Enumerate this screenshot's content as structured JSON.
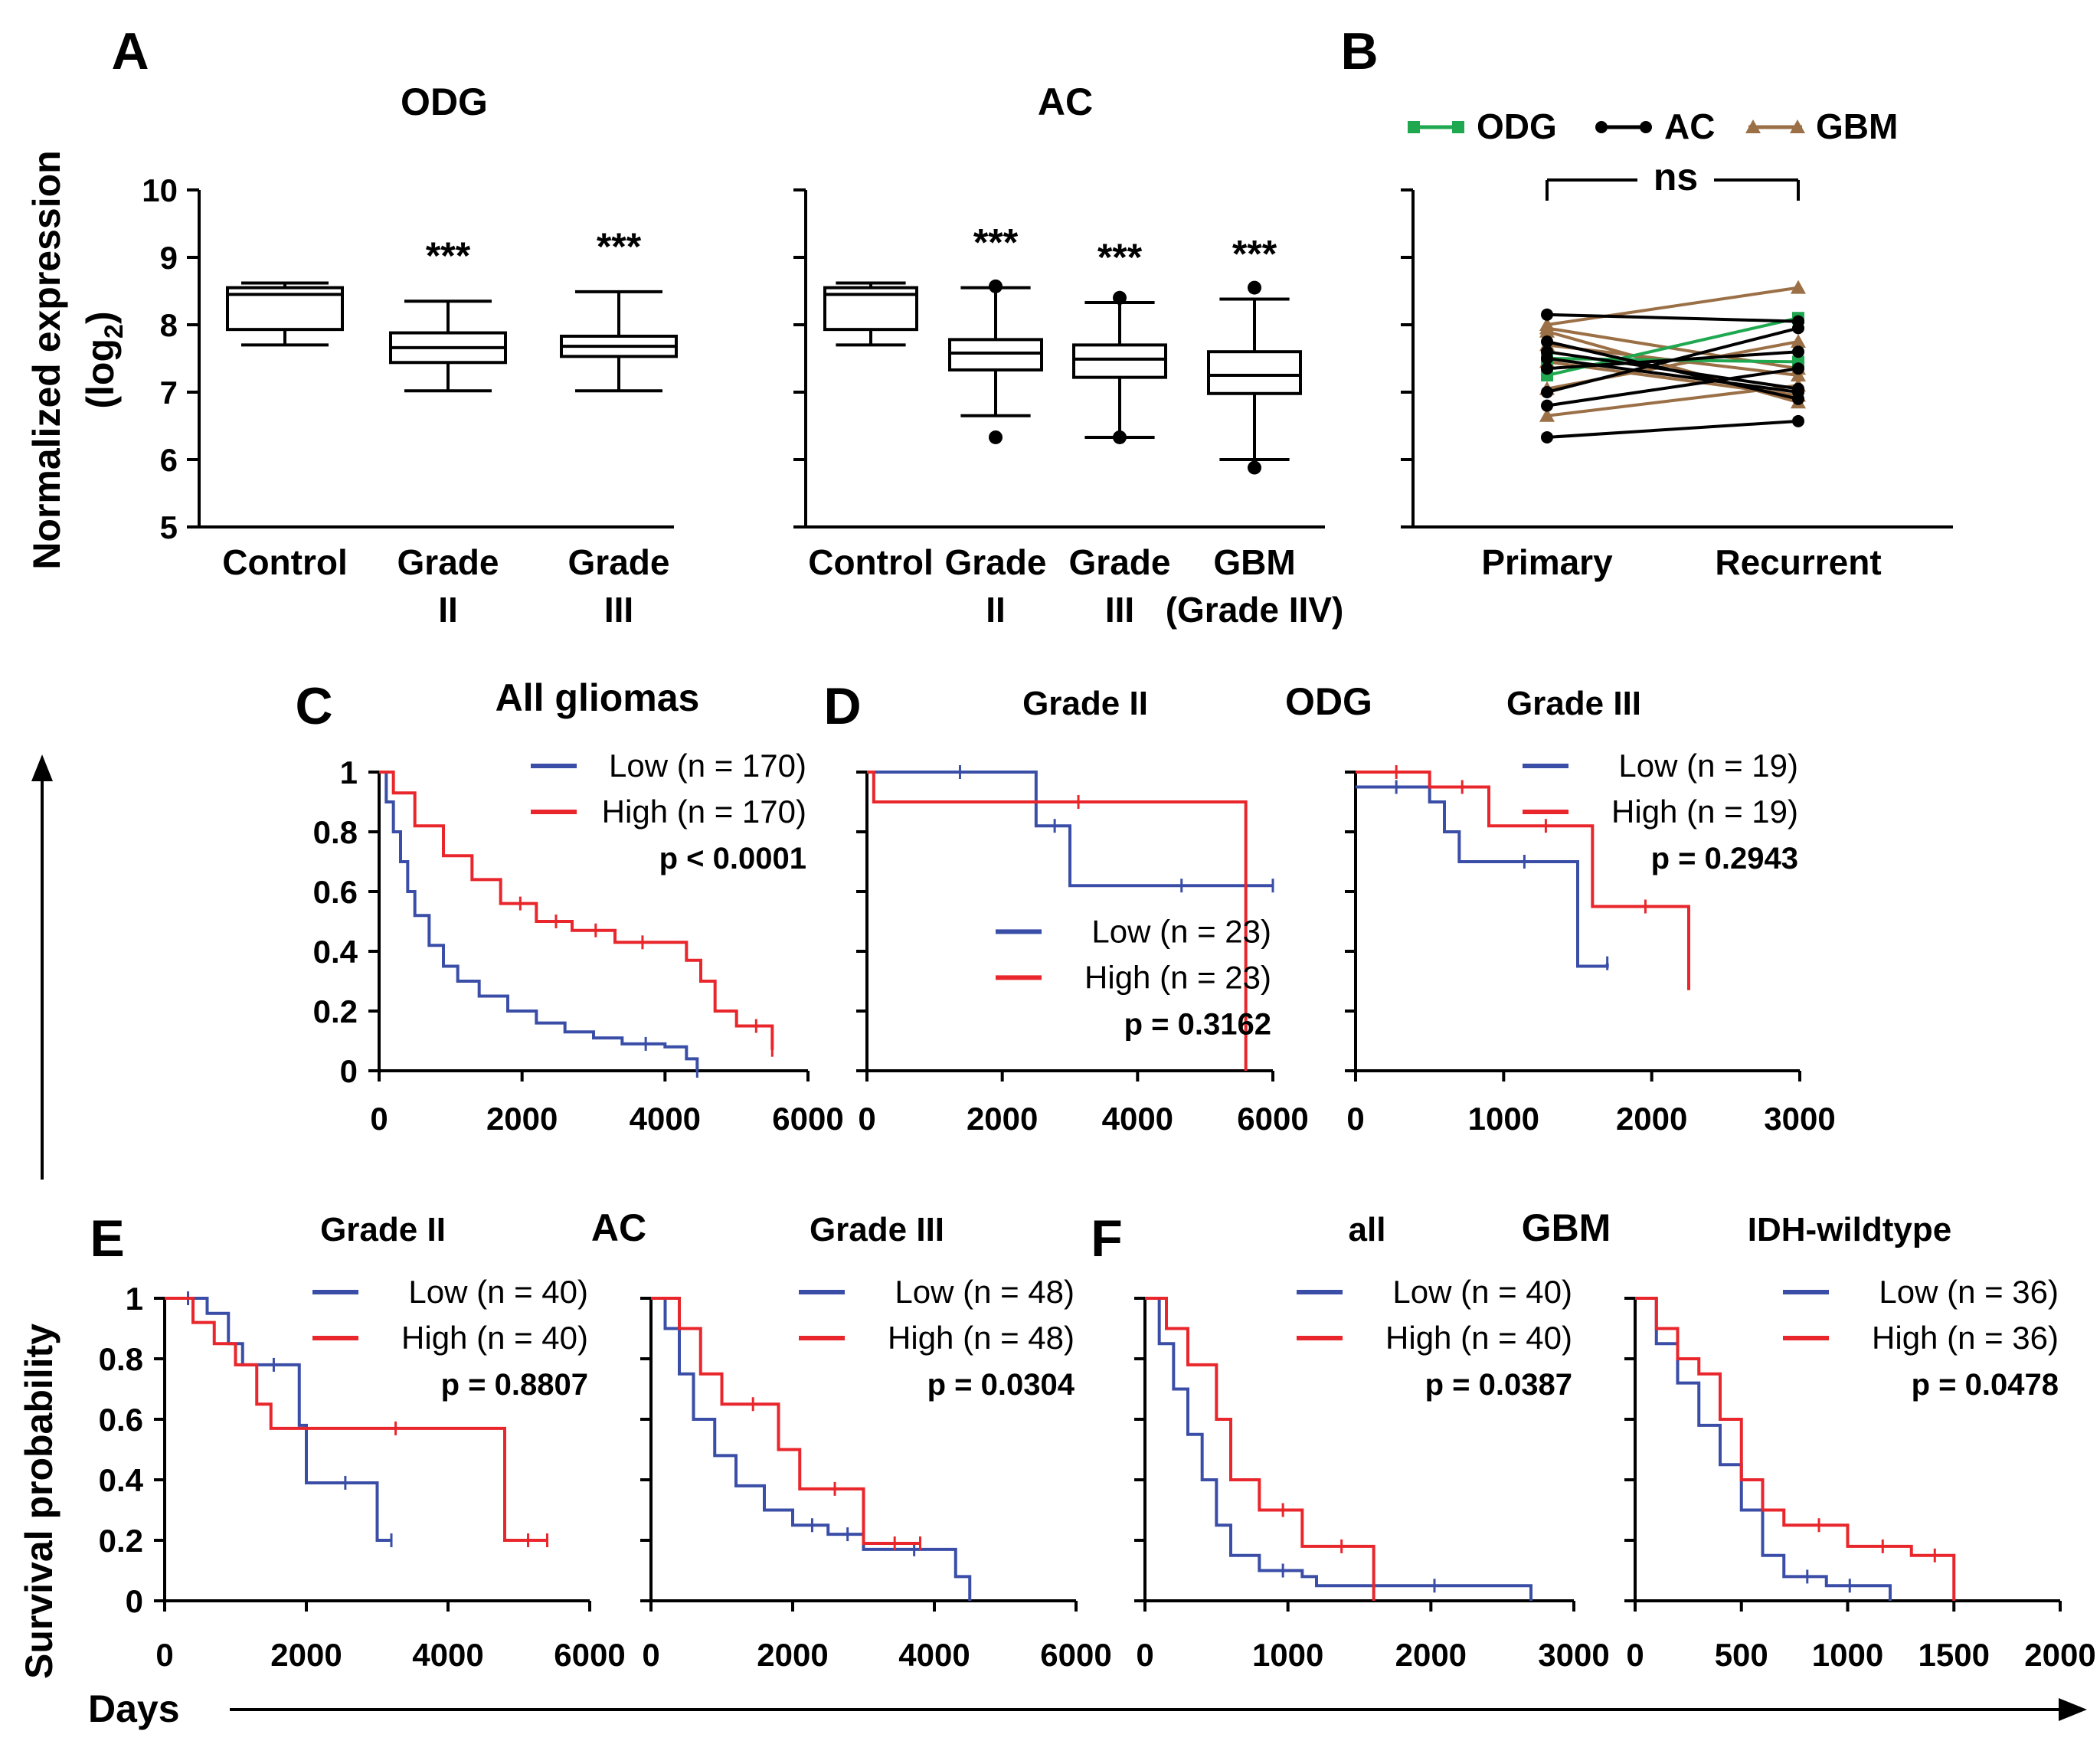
{
  "colors": {
    "low": "#3a4ea7",
    "high": "#e8262b",
    "odg": "#1fa84f",
    "ac": "#000000",
    "gbm": "#9b7046",
    "axis": "#000000"
  },
  "chart_data": [
    {
      "id": "A-ODG",
      "type": "box",
      "panel": "A",
      "title": "ODG",
      "ylabel_main": "Normalized expression",
      "ylabel_sub": "(log",
      "ylabel_sub_index": "2",
      "ylabel_sub_end": ")",
      "ylim": [
        5,
        10
      ],
      "yticks": [
        5,
        6,
        7,
        8,
        9,
        10
      ],
      "categories": [
        [
          "Control"
        ],
        [
          "Grade",
          "II"
        ],
        [
          "Grade",
          "III"
        ]
      ],
      "boxes": [
        {
          "min": 7.7,
          "q1": 7.93,
          "median": 8.45,
          "q3": 8.55,
          "max": 8.62,
          "outliers": [],
          "sig": ""
        },
        {
          "min": 7.02,
          "q1": 7.44,
          "median": 7.66,
          "q3": 7.88,
          "max": 8.35,
          "outliers": [],
          "sig": "***"
        },
        {
          "min": 7.02,
          "q1": 7.53,
          "median": 7.68,
          "q3": 7.83,
          "max": 8.49,
          "outliers": [],
          "sig": "***"
        }
      ]
    },
    {
      "id": "A-AC",
      "type": "box",
      "panel": "A",
      "title": "AC",
      "ylim": [
        5,
        10
      ],
      "yticks": [
        5,
        6,
        7,
        8,
        9,
        10
      ],
      "categories": [
        [
          "Control"
        ],
        [
          "Grade",
          "II"
        ],
        [
          "Grade",
          "III"
        ],
        [
          "GBM",
          "(Grade IIV)"
        ]
      ],
      "boxes": [
        {
          "min": 7.7,
          "q1": 7.93,
          "median": 8.45,
          "q3": 8.55,
          "max": 8.62,
          "outliers": [],
          "sig": ""
        },
        {
          "min": 6.65,
          "q1": 7.33,
          "median": 7.58,
          "q3": 7.78,
          "max": 8.55,
          "outliers": [
            6.33,
            8.57
          ],
          "sig": "***"
        },
        {
          "min": 6.33,
          "q1": 7.22,
          "median": 7.49,
          "q3": 7.7,
          "max": 8.33,
          "outliers": [
            6.33,
            8.4
          ],
          "sig": "***"
        },
        {
          "min": 6.0,
          "q1": 6.98,
          "median": 7.25,
          "q3": 7.6,
          "max": 8.38,
          "outliers": [
            5.88,
            8.55
          ],
          "sig": "***"
        }
      ]
    },
    {
      "id": "B",
      "type": "line",
      "panel": "B",
      "categories": [
        "Primary",
        "Recurrent"
      ],
      "ylim": [
        5,
        10
      ],
      "yticks": [
        5,
        6,
        7,
        8,
        9,
        10
      ],
      "sig": "ns",
      "legend": [
        {
          "name": "ODG",
          "color": "#1fa84f",
          "marker": "square"
        },
        {
          "name": "AC",
          "color": "#000000",
          "marker": "circle"
        },
        {
          "name": "GBM",
          "color": "#9b7046",
          "marker": "triangle"
        }
      ],
      "pairs": [
        {
          "group": "AC",
          "values": [
            8.15,
            8.05
          ]
        },
        {
          "group": "AC",
          "values": [
            6.33,
            6.57
          ]
        },
        {
          "group": "AC",
          "values": [
            6.8,
            7.35
          ]
        },
        {
          "group": "AC",
          "values": [
            7.0,
            7.95
          ]
        },
        {
          "group": "AC",
          "values": [
            7.35,
            7.6
          ]
        },
        {
          "group": "AC",
          "values": [
            7.6,
            7.05
          ]
        },
        {
          "group": "AC",
          "values": [
            7.75,
            6.9
          ]
        },
        {
          "group": "AC",
          "values": [
            7.5,
            7.0
          ]
        },
        {
          "group": "ODG",
          "values": [
            7.25,
            8.1
          ]
        },
        {
          "group": "ODG",
          "values": [
            7.5,
            7.45
          ]
        },
        {
          "group": "GBM",
          "values": [
            8.0,
            8.55
          ]
        },
        {
          "group": "GBM",
          "values": [
            6.65,
            7.1
          ]
        },
        {
          "group": "GBM",
          "values": [
            7.05,
            7.75
          ]
        },
        {
          "group": "GBM",
          "values": [
            7.9,
            6.85
          ]
        },
        {
          "group": "GBM",
          "values": [
            7.45,
            6.95
          ]
        },
        {
          "group": "GBM",
          "values": [
            7.95,
            7.35
          ]
        },
        {
          "group": "GBM",
          "values": [
            7.7,
            7.25
          ]
        }
      ]
    },
    {
      "id": "C",
      "type": "km",
      "panel": "C",
      "title": "All gliomas",
      "subtitle": "",
      "group_title": "",
      "xlim": [
        0,
        6000
      ],
      "xticks": [
        0,
        2000,
        4000,
        6000
      ],
      "ylim": [
        0,
        1
      ],
      "yticks": [
        "0",
        "0.2",
        "0.4",
        "0.6",
        "0.8",
        "1"
      ],
      "show_yticks": true,
      "legend": {
        "low": "Low (n = 170)",
        "high": "High (n = 170)",
        "p": "p < 0.0001"
      },
      "legend_pos": "top-right",
      "low": {
        "t": [
          0,
          100,
          200,
          300,
          400,
          500,
          700,
          900,
          1100,
          1400,
          1800,
          2200,
          2600,
          3000,
          3400,
          4000,
          4300,
          4450
        ],
        "s": [
          1.0,
          0.9,
          0.8,
          0.7,
          0.6,
          0.52,
          0.42,
          0.35,
          0.3,
          0.25,
          0.2,
          0.16,
          0.13,
          0.11,
          0.09,
          0.08,
          0.04,
          0.0
        ],
        "end_censor": true
      },
      "high": {
        "t": [
          0,
          200,
          500,
          900,
          1300,
          1700,
          2200,
          2700,
          3300,
          4000,
          4300,
          4500,
          4700,
          5000,
          5500
        ],
        "s": [
          1.0,
          0.93,
          0.82,
          0.72,
          0.64,
          0.56,
          0.5,
          0.47,
          0.43,
          0.43,
          0.37,
          0.3,
          0.2,
          0.15,
          0.07
        ],
        "end_censor": true
      }
    },
    {
      "id": "D-GII",
      "type": "km",
      "panel": "D",
      "title": "",
      "subtitle": "Grade II",
      "group_title": "ODG",
      "xlim": [
        0,
        6000
      ],
      "xticks": [
        0,
        2000,
        4000,
        6000
      ],
      "ylim": [
        0,
        1
      ],
      "yticks": [
        "0",
        "0.2",
        "0.4",
        "0.6",
        "0.8",
        "1"
      ],
      "show_yticks": false,
      "legend": {
        "low": "Low (n = 23)",
        "high": "High (n = 23)",
        "p": "p = 0.3162"
      },
      "legend_pos": "bottom-right",
      "low": {
        "t": [
          0,
          2500,
          3000,
          6000
        ],
        "s": [
          1.0,
          0.82,
          0.62,
          0.62
        ],
        "end_censor": true
      },
      "high": {
        "t": [
          0,
          100,
          5600
        ],
        "s": [
          1.0,
          0.9,
          0.0
        ],
        "end_censor": false
      }
    },
    {
      "id": "D-GIII",
      "type": "km",
      "panel": "D",
      "title": "",
      "subtitle": "Grade III",
      "group_title": "",
      "xlim": [
        0,
        3000
      ],
      "xticks": [
        0,
        1000,
        2000,
        3000
      ],
      "ylim": [
        0,
        1
      ],
      "yticks": [
        "0",
        "0.2",
        "0.4",
        "0.6",
        "0.8",
        "1"
      ],
      "show_yticks": false,
      "legend": {
        "low": "Low (n = 19)",
        "high": "High (n = 19)",
        "p": "p = 0.2943"
      },
      "legend_pos": "top-right",
      "low": {
        "t": [
          0,
          500,
          600,
          700,
          1500,
          1700
        ],
        "s": [
          0.95,
          0.9,
          0.8,
          0.7,
          0.35,
          0.36
        ],
        "end_censor": true
      },
      "high": {
        "t": [
          0,
          500,
          900,
          1600,
          2250
        ],
        "s": [
          1.0,
          0.95,
          0.82,
          0.55,
          0.27
        ],
        "end_censor": false
      }
    },
    {
      "id": "E-GII",
      "type": "km",
      "panel": "E",
      "title": "",
      "subtitle": "Grade II",
      "group_title": "AC",
      "xlim": [
        0,
        6000
      ],
      "xticks": [
        0,
        2000,
        4000,
        6000
      ],
      "ylim": [
        0,
        1
      ],
      "yticks": [
        "0",
        "0.2",
        "0.4",
        "0.6",
        "0.8",
        "1"
      ],
      "show_yticks": true,
      "legend": {
        "low": "Low (n = 40)",
        "high": "High (n = 40)",
        "p": "p = 0.8807"
      },
      "legend_pos": "top-right",
      "low": {
        "t": [
          0,
          600,
          900,
          1100,
          1900,
          2000,
          3000,
          3200
        ],
        "s": [
          1.0,
          0.95,
          0.85,
          0.78,
          0.58,
          0.39,
          0.2,
          0.2
        ],
        "end_censor": true
      },
      "high": {
        "t": [
          0,
          400,
          700,
          1000,
          1300,
          1500,
          4700,
          4800,
          5400
        ],
        "s": [
          1.0,
          0.92,
          0.85,
          0.78,
          0.65,
          0.57,
          0.57,
          0.2,
          0.2
        ],
        "end_censor": true
      }
    },
    {
      "id": "E-GIII",
      "type": "km",
      "panel": "E",
      "title": "",
      "subtitle": "Grade III",
      "group_title": "",
      "xlim": [
        0,
        6000
      ],
      "xticks": [
        0,
        2000,
        4000,
        6000
      ],
      "ylim": [
        0,
        1
      ],
      "yticks": [
        "0",
        "0.2",
        "0.4",
        "0.6",
        "0.8",
        "1"
      ],
      "show_yticks": false,
      "legend": {
        "low": "Low (n = 48)",
        "high": "High (n = 48)",
        "p": "p = 0.0304"
      },
      "legend_pos": "top-right",
      "low": {
        "t": [
          0,
          200,
          400,
          600,
          900,
          1200,
          1600,
          2000,
          2500,
          3000,
          4300,
          4500
        ],
        "s": [
          1.0,
          0.9,
          0.75,
          0.6,
          0.48,
          0.38,
          0.3,
          0.25,
          0.22,
          0.17,
          0.08,
          0.0
        ],
        "end_censor": false
      },
      "high": {
        "t": [
          0,
          400,
          700,
          1000,
          1800,
          2100,
          3000,
          3800
        ],
        "s": [
          1.0,
          0.9,
          0.75,
          0.65,
          0.5,
          0.37,
          0.19,
          0.19
        ],
        "end_censor": true
      }
    },
    {
      "id": "F-all",
      "type": "km",
      "panel": "F",
      "title": "",
      "subtitle": "all",
      "group_title": "GBM",
      "xlim": [
        0,
        3000
      ],
      "xticks": [
        0,
        1000,
        2000,
        3000
      ],
      "ylim": [
        0,
        1
      ],
      "yticks": [
        "0",
        "0.2",
        "0.4",
        "0.6",
        "0.8",
        "1"
      ],
      "show_yticks": false,
      "legend": {
        "low": "Low (n = 40)",
        "high": "High (n = 40)",
        "p": "p = 0.0387"
      },
      "legend_pos": "top-right",
      "low": {
        "t": [
          0,
          100,
          200,
          300,
          400,
          500,
          600,
          800,
          1100,
          1200,
          2700
        ],
        "s": [
          1.0,
          0.85,
          0.7,
          0.55,
          0.4,
          0.25,
          0.15,
          0.1,
          0.08,
          0.05,
          0.0
        ],
        "end_censor": false
      },
      "high": {
        "t": [
          0,
          150,
          300,
          500,
          600,
          800,
          1100,
          1600
        ],
        "s": [
          1.0,
          0.9,
          0.78,
          0.6,
          0.4,
          0.3,
          0.18,
          0.0
        ],
        "end_censor": false
      }
    },
    {
      "id": "F-IDH",
      "type": "km",
      "panel": "F",
      "title": "",
      "subtitle": "IDH-wildtype",
      "group_title": "",
      "xlim": [
        0,
        2000
      ],
      "xticks": [
        0,
        500,
        1000,
        1500,
        2000
      ],
      "ylim": [
        0,
        1
      ],
      "yticks": [
        "0",
        "0.2",
        "0.4",
        "0.6",
        "0.8",
        "1"
      ],
      "show_yticks": false,
      "legend": {
        "low": "Low (n = 36)",
        "high": "High (n = 36)",
        "p": "p = 0.0478"
      },
      "legend_pos": "top-right",
      "low": {
        "t": [
          0,
          100,
          200,
          300,
          400,
          500,
          600,
          700,
          900,
          1100,
          1200
        ],
        "s": [
          1.0,
          0.85,
          0.72,
          0.58,
          0.45,
          0.3,
          0.15,
          0.08,
          0.05,
          0.05,
          0.0
        ],
        "end_censor": false
      },
      "high": {
        "t": [
          0,
          100,
          200,
          300,
          400,
          500,
          600,
          700,
          1000,
          1300,
          1500
        ],
        "s": [
          1.0,
          0.9,
          0.8,
          0.75,
          0.6,
          0.4,
          0.3,
          0.25,
          0.18,
          0.15,
          0.0
        ],
        "end_censor": false
      }
    }
  ],
  "labels": {
    "panel_A": "A",
    "panel_B": "B",
    "panel_C": "C",
    "panel_D": "D",
    "panel_E": "E",
    "panel_F": "F",
    "survival_ylabel": "Survival probability",
    "days_xlabel": "Days"
  }
}
